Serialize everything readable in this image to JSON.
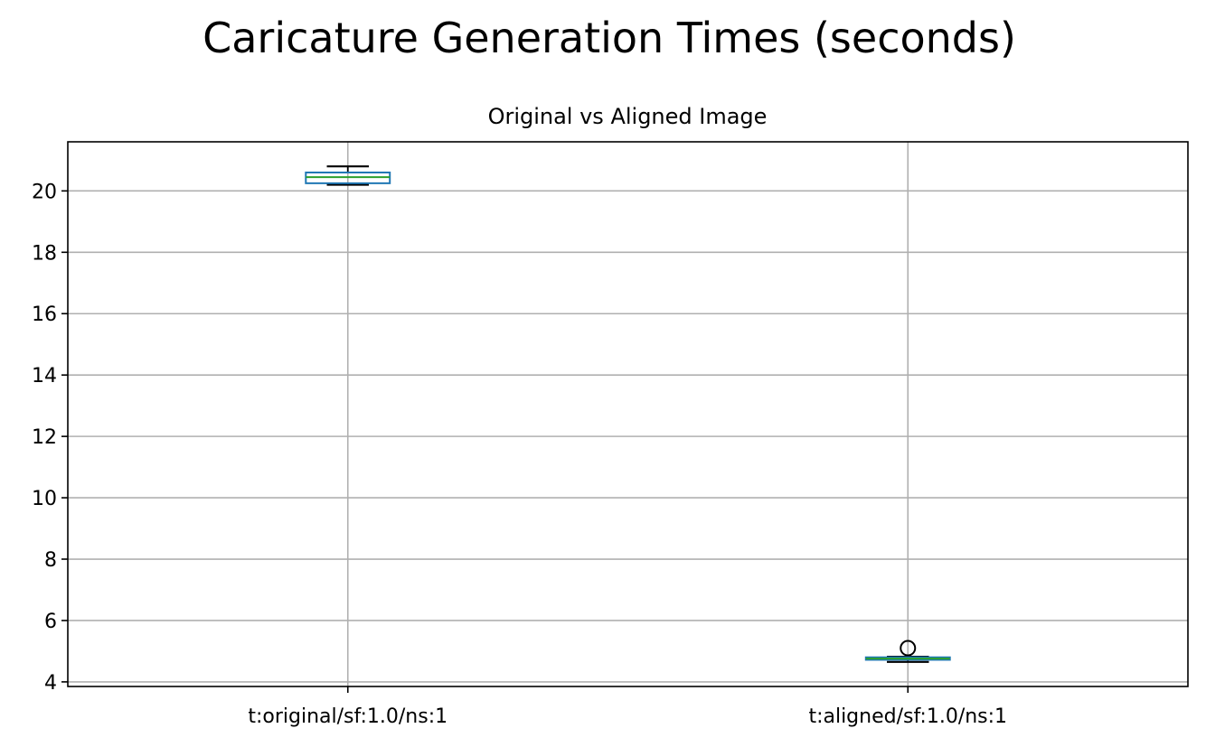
{
  "figure_title": "Caricature Generation Times (seconds)",
  "chart_data": {
    "type": "box",
    "title": "Original vs Aligned Image",
    "categories": [
      "t:original/sf:1.0/ns:1",
      "t:aligned/sf:1.0/ns:1"
    ],
    "boxes": [
      {
        "category": "t:original/sf:1.0/ns:1",
        "whisker_low": 20.2,
        "q1": 20.25,
        "median": 20.45,
        "q3": 20.6,
        "whisker_high": 20.8,
        "outliers": []
      },
      {
        "category": "t:aligned/sf:1.0/ns:1",
        "whisker_low": 4.65,
        "q1": 4.72,
        "median": 4.76,
        "q3": 4.8,
        "whisker_high": 4.82,
        "outliers": [
          5.1
        ]
      }
    ],
    "ylim": [
      3.85,
      21.6
    ],
    "yticks": [
      4,
      6,
      8,
      10,
      12,
      14,
      16,
      18,
      20
    ],
    "grid": true,
    "xlabel": "",
    "ylabel": "",
    "colors": {
      "box": "#1f77b4",
      "median": "#2ca02c",
      "whisker": "#000000",
      "grid": "#b0b0b0"
    }
  }
}
